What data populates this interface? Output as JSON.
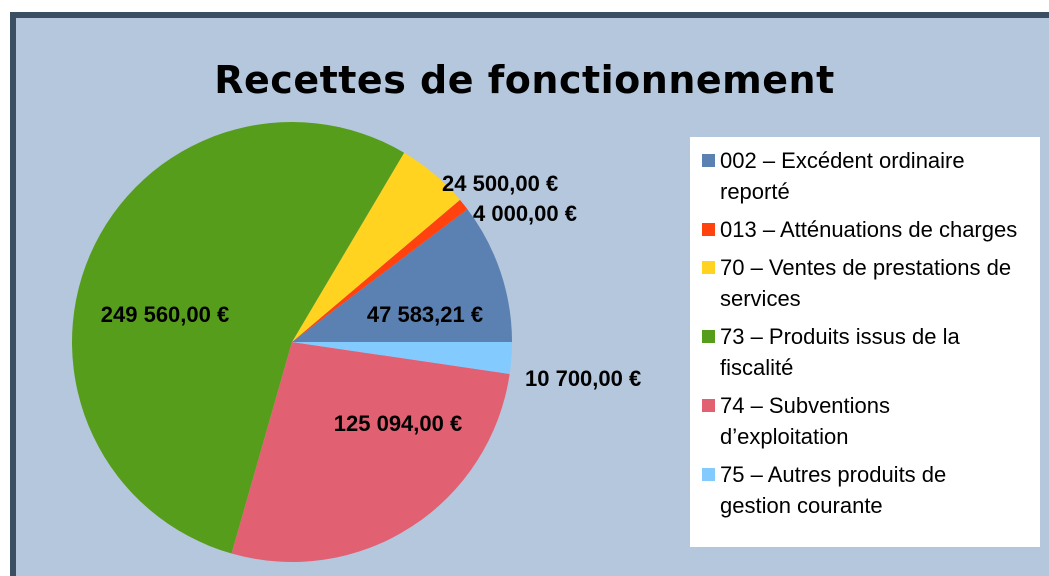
{
  "chart_data": {
    "type": "pie",
    "title": "Recettes de fonctionnement",
    "categories": [
      "002 – Excédent ordinaire reporté",
      "013 – Atténuations de charges",
      "70 – Ventes de prestations de services",
      "73 – Produits issus de la fiscalité",
      "74 – Subventions d’exploitation",
      "75 – Autres produits de gestion courante"
    ],
    "values": [
      47583.21,
      4000,
      24500,
      249560,
      125094,
      10700
    ],
    "value_labels": [
      "47 583,21 €",
      "4 000,00 €",
      "24 500,00 €",
      "249 560,00 €",
      "125 094,00 €",
      "10 700,00 €"
    ],
    "colors": [
      "#5b80b2",
      "#ff420e",
      "#ffd320",
      "#579d1c",
      "#e16173",
      "#83caff"
    ],
    "legend": "right"
  }
}
